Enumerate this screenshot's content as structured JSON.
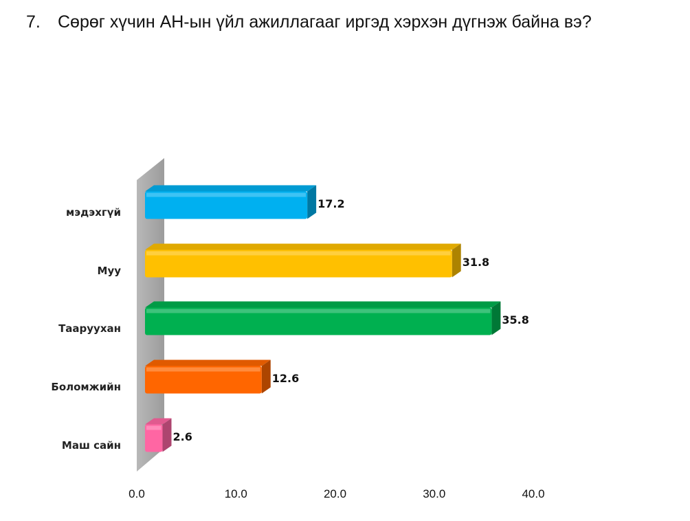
{
  "question": {
    "number": "7.",
    "text": "Сөрөг хүчин АН-ын үйл ажиллагааг иргэд хэрхэн дүгнэж байна вэ?"
  },
  "chart_data": {
    "type": "bar",
    "orientation": "horizontal",
    "style": "3d",
    "categories": [
      "мэдэхгүй",
      "Муу",
      "Тааруухан",
      "Боломжийн",
      "Маш сайн"
    ],
    "values": [
      17.2,
      31.8,
      35.8,
      12.6,
      2.6
    ],
    "value_labels": [
      "17.2",
      "31.8",
      "35.8",
      "12.6",
      "2.6"
    ],
    "colors": [
      "#00B0F0",
      "#FFC000",
      "#00B050",
      "#FF6600",
      "#FF66A3"
    ],
    "xlim": [
      0,
      40
    ],
    "x_ticks": [
      "0.0",
      "10.0",
      "20.0",
      "30.0",
      "40.0"
    ],
    "title": "",
    "xlabel": "",
    "ylabel": "",
    "grid": false,
    "legend": "none"
  }
}
